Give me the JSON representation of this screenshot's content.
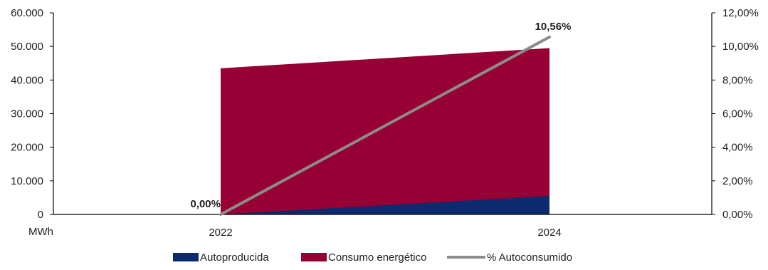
{
  "chart_data": {
    "type": "area",
    "categories": [
      "2022",
      "2024"
    ],
    "series": [
      {
        "name": "Autoproducida",
        "type": "area",
        "axis": "left",
        "values": [
          0,
          5500
        ]
      },
      {
        "name": "Consumo energético",
        "type": "area",
        "axis": "left",
        "values": [
          43500,
          49500
        ]
      },
      {
        "name": "% Autoconsumido",
        "type": "line",
        "axis": "right",
        "values": [
          0.0,
          10.56
        ]
      }
    ],
    "stacking": "overlap",
    "left_axis": {
      "unit": "MWh",
      "ylim": [
        0,
        60000
      ],
      "ticks": [
        "0",
        "10.000",
        "20.000",
        "30.000",
        "40.000",
        "50.000",
        "60.000"
      ]
    },
    "right_axis": {
      "ylim": [
        0,
        12
      ],
      "ticks": [
        "0,00%",
        "2,00%",
        "4,00%",
        "6,00%",
        "8,00%",
        "10,00%",
        "12,00%"
      ]
    },
    "data_labels": [
      "0,00%",
      "10,56%"
    ],
    "legend_placement": "bottom",
    "grid": false,
    "colors": {
      "Autoproducida": "#0c2a6e",
      "Consumo energético": "#960034",
      "% Autoconsumido": "#8c8c8c",
      "axis": "#000000"
    }
  }
}
